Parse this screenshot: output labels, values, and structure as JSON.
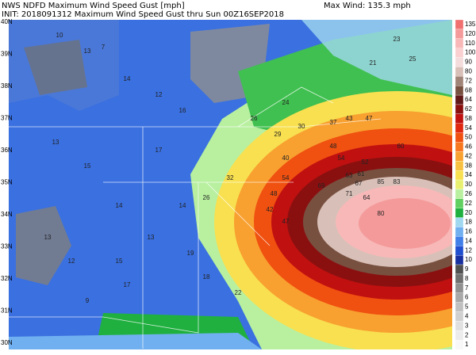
{
  "header": {
    "line1": "NWS NDFD Maximum Wind Speed Gust [mph]",
    "line2": "INIT: 2018091312 Maximum Wind Speed Gust thru Sun 00Z16SEP2018",
    "max_wind": "Max Wind: 135.3 mph"
  },
  "lat_labels": [
    "40N",
    "39N",
    "38N",
    "37N",
    "36N",
    "35N",
    "34N",
    "33N",
    "32N",
    "31N",
    "30N"
  ],
  "colorbar": [
    {
      "label": "135",
      "color": "#f07070"
    },
    {
      "label": "120",
      "color": "#f49a9a"
    },
    {
      "label": "110",
      "color": "#f8b8b8"
    },
    {
      "label": "100",
      "color": "#fad0d0"
    },
    {
      "label": "90",
      "color": "#f4dcdc"
    },
    {
      "label": "80",
      "color": "#d8c0b8"
    },
    {
      "label": "72",
      "color": "#a08478"
    },
    {
      "label": "68",
      "color": "#785040"
    },
    {
      "label": "64",
      "color": "#601818"
    },
    {
      "label": "62",
      "color": "#8a1010"
    },
    {
      "label": "58",
      "color": "#c01010"
    },
    {
      "label": "54",
      "color": "#e02810"
    },
    {
      "label": "50",
      "color": "#f05010"
    },
    {
      "label": "46",
      "color": "#f87820"
    },
    {
      "label": "42",
      "color": "#f8a030"
    },
    {
      "label": "38",
      "color": "#f8c040"
    },
    {
      "label": "34",
      "color": "#f8e050"
    },
    {
      "label": "30",
      "color": "#e8f070"
    },
    {
      "label": "26",
      "color": "#b8f0a0"
    },
    {
      "label": "22",
      "color": "#60d060"
    },
    {
      "label": "20",
      "color": "#20b040"
    },
    {
      "label": "18",
      "color": "#a0d8f0"
    },
    {
      "label": "16",
      "color": "#70b0f0"
    },
    {
      "label": "14",
      "color": "#4080e8"
    },
    {
      "label": "12",
      "color": "#2050d0"
    },
    {
      "label": "10",
      "color": "#1830a0"
    },
    {
      "label": "9",
      "color": "#505050"
    },
    {
      "label": "8",
      "color": "#707070"
    },
    {
      "label": "7",
      "color": "#909090"
    },
    {
      "label": "6",
      "color": "#a8a8a8"
    },
    {
      "label": "5",
      "color": "#c0c0c0"
    },
    {
      "label": "4",
      "color": "#d0d0d0"
    },
    {
      "label": "3",
      "color": "#e0e0e0"
    },
    {
      "label": "2",
      "color": "#ececec"
    },
    {
      "label": "1",
      "color": "#f8f8f8"
    }
  ],
  "station_values": [
    10,
    13,
    7,
    14,
    12,
    16,
    13,
    15,
    17,
    14,
    23,
    21,
    25,
    24,
    26,
    29,
    30,
    37,
    43,
    47,
    40,
    48,
    54,
    52,
    61,
    63,
    67,
    71,
    64,
    69,
    85,
    83,
    80,
    60,
    47,
    42,
    48,
    54,
    32,
    26,
    22,
    18,
    19,
    13,
    15,
    17,
    14,
    9,
    13,
    12
  ]
}
